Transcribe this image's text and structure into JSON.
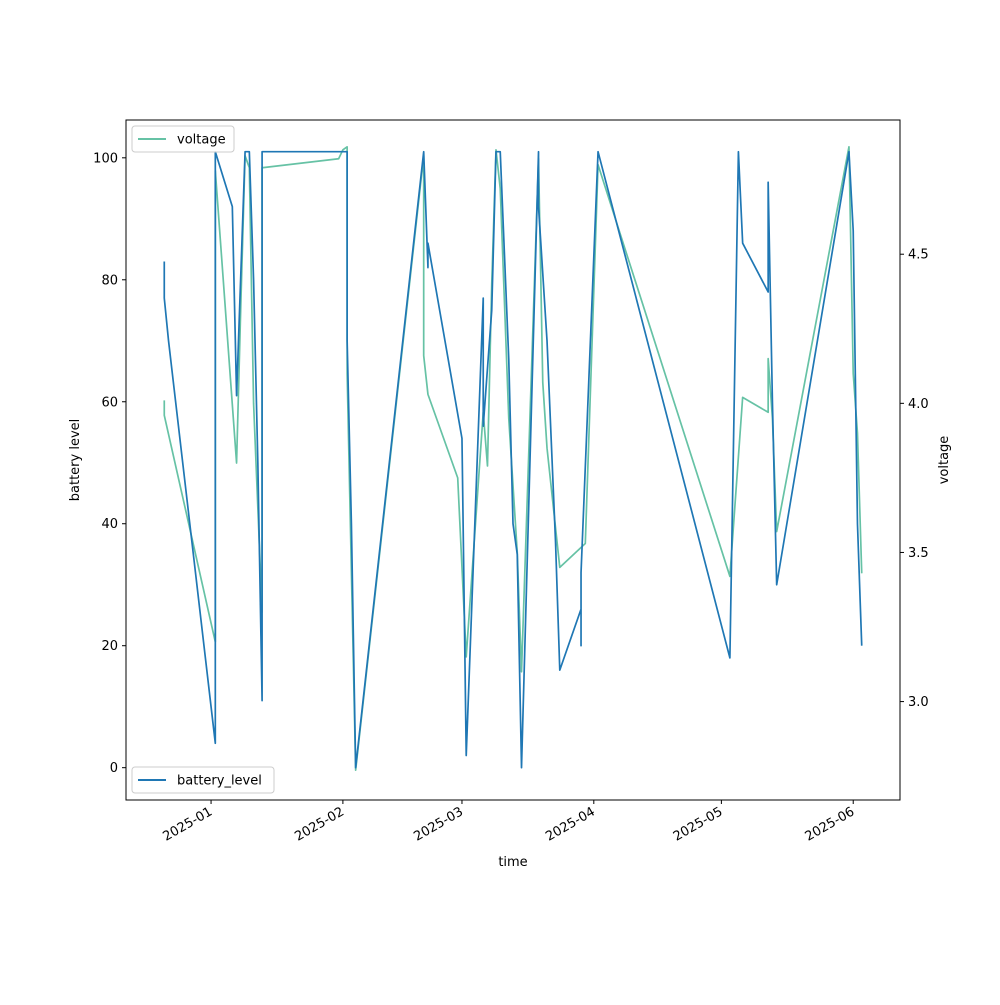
{
  "chart_data": {
    "type": "line",
    "xlabel": "time",
    "ylabel": "battery level",
    "y2label": "voltage",
    "x_ticks": [
      "2025-01",
      "2025-02",
      "2025-03",
      "2025-04",
      "2025-05",
      "2025-06"
    ],
    "xlim": [
      "2024-12-12",
      "2025-06-12"
    ],
    "ylim": [
      -5.3,
      106.2
    ],
    "y_ticks": [
      0,
      20,
      40,
      60,
      80,
      100
    ],
    "y2lim": [
      2.67,
      4.95
    ],
    "y2_ticks": [
      3.0,
      3.5,
      4.0,
      4.5
    ],
    "grid": false,
    "series": [
      {
        "name": "battery_level",
        "axis": "left",
        "color": "#1f77b4",
        "legend_position": "lower-left",
        "points": [
          [
            "2024-12-21",
            83
          ],
          [
            "2024-12-21",
            77
          ],
          [
            "2024-12-22",
            70
          ],
          [
            "2025-01-02",
            4
          ],
          [
            "2025-01-02",
            101
          ],
          [
            "2025-01-06",
            92
          ],
          [
            "2025-01-07",
            61
          ],
          [
            "2025-01-09",
            101
          ],
          [
            "2025-01-10",
            101
          ],
          [
            "2025-01-11",
            80
          ],
          [
            "2025-01-12",
            50
          ],
          [
            "2025-01-13",
            11
          ],
          [
            "2025-01-13",
            101
          ],
          [
            "2025-02-01",
            101
          ],
          [
            "2025-02-02",
            101
          ],
          [
            "2025-02-02",
            70
          ],
          [
            "2025-02-03",
            40
          ],
          [
            "2025-02-04",
            0
          ],
          [
            "2025-02-20",
            101
          ],
          [
            "2025-02-21",
            82
          ],
          [
            "2025-02-21",
            86
          ],
          [
            "2025-03-01",
            54
          ],
          [
            "2025-03-02",
            2
          ],
          [
            "2025-03-06",
            77
          ],
          [
            "2025-03-06",
            56
          ],
          [
            "2025-03-08",
            75
          ],
          [
            "2025-03-09",
            101
          ],
          [
            "2025-03-10",
            101
          ],
          [
            "2025-03-11",
            84
          ],
          [
            "2025-03-12",
            67
          ],
          [
            "2025-03-13",
            40
          ],
          [
            "2025-03-14",
            35
          ],
          [
            "2025-03-15",
            0
          ],
          [
            "2025-03-19",
            101
          ],
          [
            "2025-03-19",
            92
          ],
          [
            "2025-03-21",
            70
          ],
          [
            "2025-03-23",
            37
          ],
          [
            "2025-03-24",
            16
          ],
          [
            "2025-03-29",
            26
          ],
          [
            "2025-03-29",
            20
          ],
          [
            "2025-03-29",
            32
          ],
          [
            "2025-04-02",
            101
          ],
          [
            "2025-05-03",
            18
          ],
          [
            "2025-05-05",
            101
          ],
          [
            "2025-05-06",
            86
          ],
          [
            "2025-05-12",
            78
          ],
          [
            "2025-05-12",
            96
          ],
          [
            "2025-05-13",
            60
          ],
          [
            "2025-05-14",
            30
          ],
          [
            "2025-05-31",
            101
          ],
          [
            "2025-06-01",
            88
          ],
          [
            "2025-06-02",
            40
          ],
          [
            "2025-06-03",
            20
          ]
        ]
      },
      {
        "name": "voltage",
        "axis": "right",
        "color": "#66c2a5",
        "legend_position": "upper-left",
        "points": [
          [
            "2024-12-21",
            4.01
          ],
          [
            "2024-12-21",
            3.96
          ],
          [
            "2025-01-02",
            3.2
          ],
          [
            "2025-01-02",
            4.78
          ],
          [
            "2025-01-07",
            3.8
          ],
          [
            "2025-01-08",
            4.33
          ],
          [
            "2025-01-09",
            4.83
          ],
          [
            "2025-01-10",
            4.79
          ],
          [
            "2025-01-11",
            4.0
          ],
          [
            "2025-01-13",
            3.3
          ],
          [
            "2025-01-13",
            4.79
          ],
          [
            "2025-01-31",
            4.82
          ],
          [
            "2025-02-01",
            4.85
          ],
          [
            "2025-02-02",
            4.86
          ],
          [
            "2025-02-02",
            4.1
          ],
          [
            "2025-02-04",
            2.77
          ],
          [
            "2025-02-20",
            4.83
          ],
          [
            "2025-02-20",
            4.16
          ],
          [
            "2025-02-21",
            4.03
          ],
          [
            "2025-02-28",
            3.75
          ],
          [
            "2025-03-02",
            3.15
          ],
          [
            "2025-03-06",
            3.97
          ],
          [
            "2025-03-07",
            3.79
          ],
          [
            "2025-03-08",
            4.4
          ],
          [
            "2025-03-09",
            4.85
          ],
          [
            "2025-03-10",
            4.72
          ],
          [
            "2025-03-12",
            3.95
          ],
          [
            "2025-03-14",
            3.5
          ],
          [
            "2025-03-15",
            3.1
          ],
          [
            "2025-03-19",
            4.82
          ],
          [
            "2025-03-20",
            4.07
          ],
          [
            "2025-03-21",
            3.85
          ],
          [
            "2025-03-24",
            3.45
          ],
          [
            "2025-03-30",
            3.53
          ],
          [
            "2025-04-02",
            4.8
          ],
          [
            "2025-05-03",
            3.42
          ],
          [
            "2025-05-06",
            4.02
          ],
          [
            "2025-05-12",
            3.97
          ],
          [
            "2025-05-12",
            4.15
          ],
          [
            "2025-05-13",
            3.95
          ],
          [
            "2025-05-14",
            3.57
          ],
          [
            "2025-05-31",
            4.86
          ],
          [
            "2025-06-01",
            4.1
          ],
          [
            "2025-06-02",
            3.9
          ],
          [
            "2025-06-03",
            3.43
          ]
        ]
      }
    ]
  }
}
